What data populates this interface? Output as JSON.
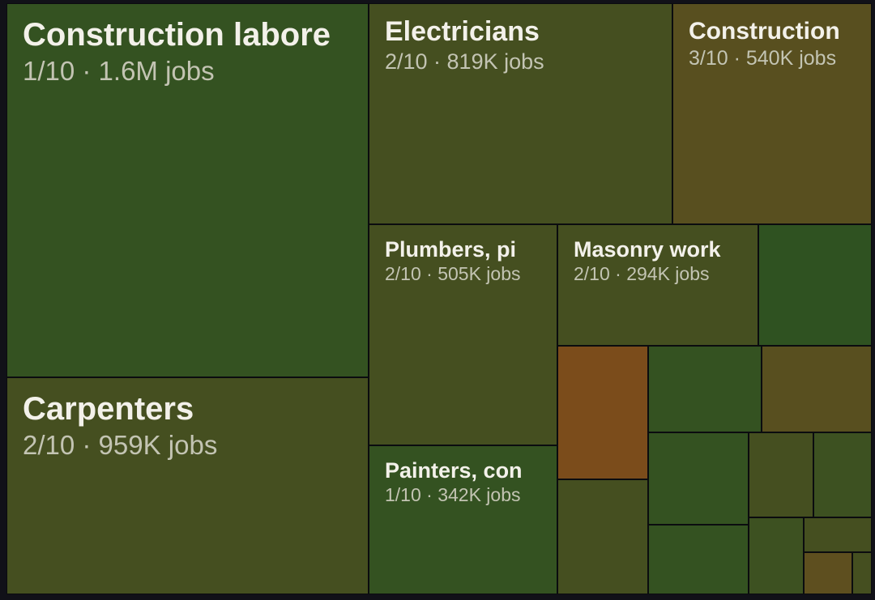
{
  "chart_data": {
    "type": "treemap",
    "unit": "jobs",
    "items": [
      {
        "name": "Construction labore",
        "rank": "1/10",
        "jobs": "1.6M",
        "value": 1600000,
        "color": "#345221"
      },
      {
        "name": "Carpenters",
        "rank": "2/10",
        "jobs": "959K",
        "value": 959000,
        "color": "#454f20"
      },
      {
        "name": "Electricians",
        "rank": "2/10",
        "jobs": "819K",
        "value": 819000,
        "color": "#454f20"
      },
      {
        "name": "Construction",
        "rank": "3/10",
        "jobs": "540K",
        "value": 540000,
        "color": "#584f1f"
      },
      {
        "name": "Plumbers, pi",
        "rank": "2/10",
        "jobs": "505K",
        "value": 505000,
        "color": "#454f20"
      },
      {
        "name": "Masonry work",
        "rank": "2/10",
        "jobs": "294K",
        "value": 294000,
        "color": "#454f20"
      },
      {
        "name": "Painters, con",
        "rank": "1/10",
        "jobs": "342K",
        "value": 342000,
        "color": "#345221"
      },
      {
        "name": "",
        "color": "#2f5221"
      },
      {
        "name": "",
        "color": "#7b4c1b"
      },
      {
        "name": "",
        "color": "#345221"
      },
      {
        "name": "",
        "color": "#584f1f"
      },
      {
        "name": "",
        "color": "#345221"
      },
      {
        "name": "",
        "color": "#454f20"
      },
      {
        "name": "",
        "color": "#3d5121"
      },
      {
        "name": "",
        "color": "#454f20"
      },
      {
        "name": "",
        "color": "#345221"
      },
      {
        "name": "",
        "color": "#3d5121"
      },
      {
        "name": "",
        "color": "#454f20"
      },
      {
        "name": "",
        "color": "#5e4f1f"
      },
      {
        "name": "",
        "color": "#454f20"
      }
    ]
  }
}
